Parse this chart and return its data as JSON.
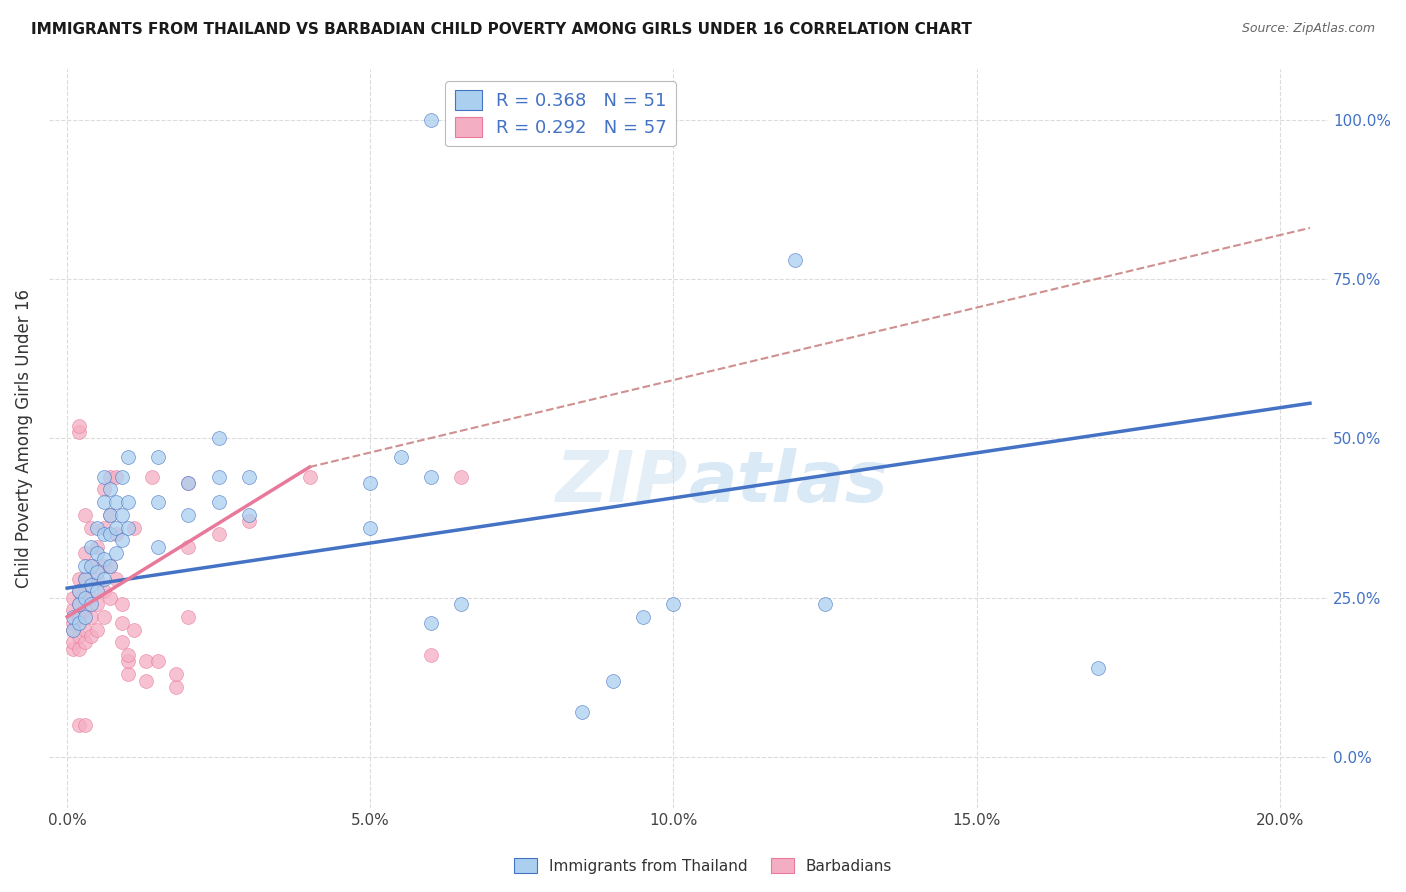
{
  "title": "IMMIGRANTS FROM THAILAND VS BARBADIAN CHILD POVERTY AMONG GIRLS UNDER 16 CORRELATION CHART",
  "source": "Source: ZipAtlas.com",
  "ylabel_label": "Child Poverty Among Girls Under 16",
  "xlabel_vals": [
    0.0,
    0.05,
    0.1,
    0.15,
    0.2
  ],
  "xlabel_ticks": [
    "0.0%",
    "5.0%",
    "10.0%",
    "15.0%",
    "20.0%"
  ],
  "ylabel_vals": [
    0.0,
    0.25,
    0.5,
    0.75,
    1.0
  ],
  "ylabel_ticks": [
    "0.0%",
    "25.0%",
    "50.0%",
    "75.0%",
    "100.0%"
  ],
  "xlim": [
    -0.003,
    0.208
  ],
  "ylim": [
    -0.08,
    1.08
  ],
  "watermark": "ZIPatlas",
  "color_blue": "#aacfef",
  "color_pink": "#f4aec3",
  "line_blue": "#4472c4",
  "line_pink": "#e8799a",
  "line_dashed_color": "#d09090",
  "blue_scatter": [
    [
      0.001,
      0.2
    ],
    [
      0.001,
      0.22
    ],
    [
      0.002,
      0.21
    ],
    [
      0.002,
      0.24
    ],
    [
      0.002,
      0.26
    ],
    [
      0.003,
      0.22
    ],
    [
      0.003,
      0.25
    ],
    [
      0.003,
      0.28
    ],
    [
      0.003,
      0.3
    ],
    [
      0.004,
      0.24
    ],
    [
      0.004,
      0.27
    ],
    [
      0.004,
      0.3
    ],
    [
      0.004,
      0.33
    ],
    [
      0.005,
      0.26
    ],
    [
      0.005,
      0.29
    ],
    [
      0.005,
      0.32
    ],
    [
      0.005,
      0.36
    ],
    [
      0.006,
      0.28
    ],
    [
      0.006,
      0.31
    ],
    [
      0.006,
      0.35
    ],
    [
      0.006,
      0.4
    ],
    [
      0.006,
      0.44
    ],
    [
      0.007,
      0.3
    ],
    [
      0.007,
      0.35
    ],
    [
      0.007,
      0.38
    ],
    [
      0.007,
      0.42
    ],
    [
      0.008,
      0.32
    ],
    [
      0.008,
      0.36
    ],
    [
      0.008,
      0.4
    ],
    [
      0.009,
      0.34
    ],
    [
      0.009,
      0.38
    ],
    [
      0.009,
      0.44
    ],
    [
      0.01,
      0.36
    ],
    [
      0.01,
      0.4
    ],
    [
      0.01,
      0.47
    ],
    [
      0.015,
      0.33
    ],
    [
      0.015,
      0.4
    ],
    [
      0.015,
      0.47
    ],
    [
      0.02,
      0.38
    ],
    [
      0.02,
      0.43
    ],
    [
      0.025,
      0.4
    ],
    [
      0.025,
      0.44
    ],
    [
      0.025,
      0.5
    ],
    [
      0.03,
      0.38
    ],
    [
      0.03,
      0.44
    ],
    [
      0.05,
      0.36
    ],
    [
      0.05,
      0.43
    ],
    [
      0.055,
      0.47
    ],
    [
      0.06,
      0.44
    ],
    [
      0.06,
      0.21
    ],
    [
      0.065,
      0.24
    ],
    [
      0.095,
      0.22
    ],
    [
      0.1,
      0.24
    ],
    [
      0.085,
      0.07
    ],
    [
      0.09,
      0.12
    ],
    [
      0.12,
      0.78
    ],
    [
      0.125,
      0.24
    ],
    [
      0.17,
      0.14
    ],
    [
      0.06,
      1.0
    ]
  ],
  "pink_scatter": [
    [
      0.001,
      0.17
    ],
    [
      0.001,
      0.18
    ],
    [
      0.001,
      0.2
    ],
    [
      0.001,
      0.21
    ],
    [
      0.001,
      0.23
    ],
    [
      0.001,
      0.25
    ],
    [
      0.002,
      0.17
    ],
    [
      0.002,
      0.19
    ],
    [
      0.002,
      0.22
    ],
    [
      0.002,
      0.24
    ],
    [
      0.002,
      0.26
    ],
    [
      0.002,
      0.28
    ],
    [
      0.002,
      0.51
    ],
    [
      0.002,
      0.52
    ],
    [
      0.003,
      0.18
    ],
    [
      0.003,
      0.2
    ],
    [
      0.003,
      0.23
    ],
    [
      0.003,
      0.26
    ],
    [
      0.003,
      0.28
    ],
    [
      0.003,
      0.32
    ],
    [
      0.003,
      0.38
    ],
    [
      0.004,
      0.19
    ],
    [
      0.004,
      0.22
    ],
    [
      0.004,
      0.25
    ],
    [
      0.004,
      0.3
    ],
    [
      0.004,
      0.36
    ],
    [
      0.005,
      0.2
    ],
    [
      0.005,
      0.24
    ],
    [
      0.005,
      0.28
    ],
    [
      0.005,
      0.33
    ],
    [
      0.006,
      0.22
    ],
    [
      0.006,
      0.26
    ],
    [
      0.006,
      0.3
    ],
    [
      0.006,
      0.36
    ],
    [
      0.006,
      0.42
    ],
    [
      0.007,
      0.25
    ],
    [
      0.007,
      0.3
    ],
    [
      0.007,
      0.38
    ],
    [
      0.007,
      0.44
    ],
    [
      0.008,
      0.28
    ],
    [
      0.008,
      0.35
    ],
    [
      0.008,
      0.44
    ],
    [
      0.009,
      0.18
    ],
    [
      0.009,
      0.21
    ],
    [
      0.009,
      0.24
    ],
    [
      0.01,
      0.13
    ],
    [
      0.01,
      0.15
    ],
    [
      0.01,
      0.16
    ],
    [
      0.011,
      0.2
    ],
    [
      0.011,
      0.36
    ],
    [
      0.013,
      0.12
    ],
    [
      0.013,
      0.15
    ],
    [
      0.014,
      0.44
    ],
    [
      0.015,
      0.15
    ],
    [
      0.018,
      0.11
    ],
    [
      0.018,
      0.13
    ],
    [
      0.02,
      0.22
    ],
    [
      0.02,
      0.33
    ],
    [
      0.02,
      0.43
    ],
    [
      0.025,
      0.35
    ],
    [
      0.03,
      0.37
    ],
    [
      0.04,
      0.44
    ],
    [
      0.06,
      0.16
    ],
    [
      0.065,
      0.44
    ],
    [
      0.002,
      0.05
    ],
    [
      0.003,
      0.05
    ]
  ],
  "blue_line_x": [
    0.0,
    0.205
  ],
  "blue_line_y": [
    0.265,
    0.555
  ],
  "pink_line_x": [
    0.0,
    0.04
  ],
  "pink_line_y": [
    0.22,
    0.455
  ],
  "dashed_line_x": [
    0.04,
    0.205
  ],
  "dashed_line_y": [
    0.455,
    0.83
  ]
}
